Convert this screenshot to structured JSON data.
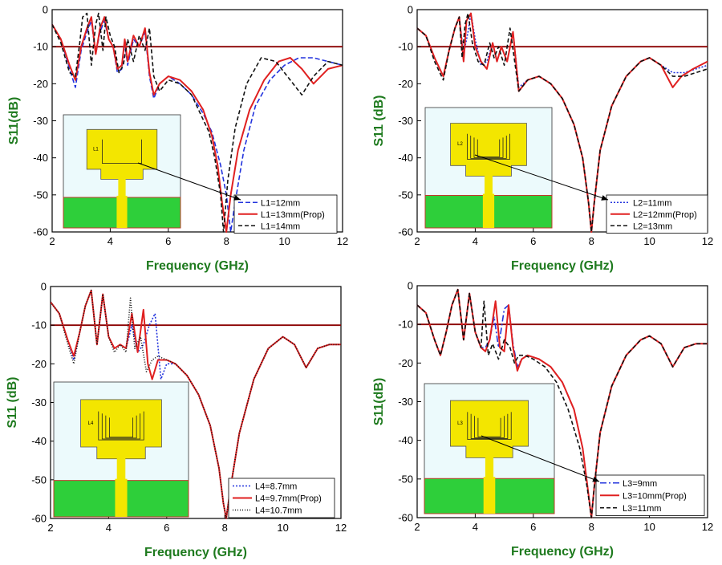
{
  "chart_data": [
    {
      "type": "line",
      "xlabel": "Frequency (GHz)",
      "ylabel": "S11(dB)",
      "xlim": [
        2,
        12
      ],
      "ylim": [
        -60,
        0
      ],
      "xticks": [
        2,
        4,
        6,
        8,
        10,
        12
      ],
      "yticks": [
        0,
        -10,
        -20,
        -30,
        -40,
        -50,
        -60
      ],
      "reference_line": {
        "y": -10,
        "color": "#8b0000"
      },
      "inset_slot_label": "L1",
      "series": [
        {
          "name": "L1=12mm",
          "color": "#2233dd",
          "dash": "6,3",
          "x": [
            2,
            2.3,
            2.6,
            2.8,
            3,
            3.2,
            3.35,
            3.5,
            3.65,
            3.8,
            3.95,
            4.1,
            4.25,
            4.4,
            4.5,
            4.6,
            4.8,
            5,
            5.2,
            5.35,
            5.5,
            5.7,
            6,
            6.4,
            6.8,
            7.2,
            7.5,
            7.8,
            8,
            8.15,
            8.3,
            8.6,
            9,
            9.5,
            10,
            10.5,
            11,
            11.5,
            12
          ],
          "y": [
            -4,
            -8,
            -16,
            -21,
            -11,
            -6,
            -3,
            -12,
            -6,
            -3,
            -8,
            -10,
            -17,
            -16,
            -9,
            -15,
            -8,
            -10,
            -6,
            -18,
            -24,
            -20,
            -18,
            -20,
            -23,
            -28,
            -33,
            -42,
            -50,
            -60,
            -52,
            -38,
            -26,
            -19,
            -15,
            -13,
            -13,
            -14,
            -15
          ]
        },
        {
          "name": "L1=13mm(Prop)",
          "color": "#e02020",
          "dash": "",
          "x": [
            2,
            2.3,
            2.6,
            2.8,
            3,
            3.2,
            3.35,
            3.5,
            3.65,
            3.8,
            3.95,
            4.1,
            4.25,
            4.4,
            4.5,
            4.6,
            4.8,
            5,
            5.2,
            5.35,
            5.5,
            5.7,
            6,
            6.4,
            6.8,
            7.2,
            7.5,
            7.7,
            7.85,
            8,
            8.15,
            8.4,
            8.8,
            9.3,
            9.8,
            10.2,
            10.6,
            11,
            11.5,
            12
          ],
          "y": [
            -4,
            -8,
            -15,
            -19,
            -10,
            -5,
            -2,
            -12,
            -5,
            -2,
            -8,
            -10,
            -16,
            -15,
            -8,
            -14,
            -7,
            -10,
            -5,
            -17,
            -23,
            -20,
            -18,
            -19,
            -22,
            -27,
            -34,
            -42,
            -52,
            -60,
            -50,
            -38,
            -27,
            -19,
            -14,
            -13,
            -16,
            -20,
            -16,
            -15
          ]
        },
        {
          "name": "L1=14mm",
          "color": "#111111",
          "dash": "5,3",
          "x": [
            2,
            2.3,
            2.6,
            2.8,
            2.95,
            3.05,
            3.2,
            3.35,
            3.5,
            3.6,
            3.75,
            3.85,
            4,
            4.15,
            4.3,
            4.45,
            4.6,
            4.8,
            5,
            5.2,
            5.35,
            5.5,
            5.7,
            6,
            6.4,
            6.8,
            7.1,
            7.4,
            7.6,
            7.8,
            7.9,
            8.05,
            8.3,
            8.7,
            9.2,
            9.7,
            10.2,
            10.6,
            11,
            11.5,
            12
          ],
          "y": [
            -4,
            -9,
            -17,
            -18,
            -9,
            -2,
            -1,
            -15,
            -4,
            -1,
            -11,
            -2,
            -7,
            -10,
            -17,
            -15,
            -8,
            -14,
            -7,
            -11,
            -5,
            -18,
            -22,
            -19,
            -20,
            -23,
            -28,
            -33,
            -40,
            -50,
            -60,
            -46,
            -32,
            -20,
            -13,
            -14,
            -19,
            -23,
            -18,
            -14,
            -15
          ]
        }
      ],
      "legend": {
        "position": "bottom-right"
      }
    },
    {
      "type": "line",
      "xlabel": "Frequency (GHz)",
      "ylabel": "S11 (dB)",
      "xlim": [
        2,
        12
      ],
      "ylim": [
        -60,
        0
      ],
      "xticks": [
        2,
        4,
        6,
        8,
        10,
        12
      ],
      "yticks": [
        0,
        -10,
        -20,
        -30,
        -40,
        -50,
        -60
      ],
      "reference_line": {
        "y": -10,
        "color": "#8b0000"
      },
      "inset_slot_label": "L2",
      "series": [
        {
          "name": "L2=11mm",
          "color": "#2233dd",
          "dash": "2,2",
          "x": [
            2,
            2.3,
            2.6,
            2.9,
            3.1,
            3.3,
            3.45,
            3.6,
            3.75,
            3.85,
            4,
            4.2,
            4.4,
            4.6,
            4.75,
            4.9,
            5.1,
            5.3,
            5.5,
            5.8,
            6.2,
            6.6,
            7,
            7.4,
            7.7,
            7.9,
            8,
            8.1,
            8.3,
            8.7,
            9.2,
            9.7,
            10,
            10.4,
            10.8,
            11.2,
            11.6,
            12
          ],
          "y": [
            -5,
            -7,
            -13,
            -18,
            -11,
            -5,
            -2,
            -12,
            -6,
            -1,
            -8,
            -15,
            -14,
            -9,
            -14,
            -10,
            -14,
            -6,
            -21,
            -19,
            -18,
            -20,
            -24,
            -31,
            -40,
            -52,
            -60,
            -52,
            -38,
            -26,
            -18,
            -14,
            -13,
            -15,
            -17,
            -17,
            -16,
            -15
          ]
        },
        {
          "name": "L2=12mm(Prop)",
          "color": "#e02020",
          "dash": "",
          "x": [
            2,
            2.3,
            2.6,
            2.9,
            3.1,
            3.3,
            3.45,
            3.6,
            3.7,
            3.85,
            4,
            4.2,
            4.4,
            4.6,
            4.75,
            4.9,
            5.1,
            5.3,
            5.5,
            5.8,
            6.2,
            6.6,
            7,
            7.4,
            7.7,
            7.9,
            8,
            8.1,
            8.3,
            8.7,
            9.2,
            9.7,
            10,
            10.4,
            10.6,
            10.8,
            11.1,
            11.5,
            12
          ],
          "y": [
            -5,
            -7,
            -13,
            -18,
            -11,
            -5,
            -2,
            -14,
            -3,
            -1,
            -10,
            -14,
            -16,
            -9,
            -14,
            -10,
            -14,
            -6,
            -22,
            -19,
            -18,
            -20,
            -24,
            -31,
            -40,
            -52,
            -60,
            -52,
            -38,
            -26,
            -18,
            -14,
            -13,
            -15,
            -18,
            -21,
            -18,
            -16,
            -14
          ]
        },
        {
          "name": "L2=13mm",
          "color": "#111111",
          "dash": "5,3",
          "x": [
            2,
            2.3,
            2.6,
            2.9,
            3.1,
            3.3,
            3.45,
            3.55,
            3.65,
            3.75,
            3.9,
            4.1,
            4.3,
            4.5,
            4.65,
            4.8,
            5,
            5.2,
            5.5,
            5.8,
            6.2,
            6.6,
            7,
            7.4,
            7.7,
            7.9,
            8,
            8.1,
            8.3,
            8.7,
            9.2,
            9.7,
            10,
            10.4,
            10.8,
            11.2,
            11.6,
            12
          ],
          "y": [
            -5,
            -7,
            -14,
            -19,
            -11,
            -5,
            -2,
            -13,
            -4,
            -1,
            -9,
            -14,
            -15,
            -9,
            -13,
            -10,
            -15,
            -5,
            -22,
            -19,
            -18,
            -20,
            -24,
            -31,
            -40,
            -52,
            -60,
            -52,
            -38,
            -26,
            -18,
            -14,
            -13,
            -15,
            -18,
            -18,
            -17,
            -16
          ]
        }
      ],
      "legend": {
        "position": "bottom-right"
      }
    },
    {
      "type": "line",
      "xlabel": "Frequency (GHz)",
      "ylabel": "S11 (dB)",
      "xlim": [
        2,
        12
      ],
      "ylim": [
        -60,
        0
      ],
      "xticks": [
        2,
        4,
        6,
        8,
        10,
        12
      ],
      "yticks": [
        0,
        -10,
        -20,
        -30,
        -40,
        -50,
        -60
      ],
      "reference_line": {
        "y": -10,
        "color": "#8b0000"
      },
      "inset_slot_label": "L4",
      "series": [
        {
          "name": "L4=8.7mm",
          "color": "#2233dd",
          "dash": "2,2",
          "x": [
            2,
            2.3,
            2.6,
            2.8,
            3,
            3.2,
            3.4,
            3.6,
            3.8,
            4,
            4.2,
            4.4,
            4.6,
            4.8,
            5,
            5.2,
            5.4,
            5.6,
            5.8,
            6,
            6.3,
            6.7,
            7.1,
            7.5,
            7.8,
            7.95,
            8.05,
            8.2,
            8.5,
            9,
            9.5,
            10,
            10.4,
            10.8,
            11.2,
            11.6,
            12
          ],
          "y": [
            -4,
            -7,
            -14,
            -19,
            -12,
            -5,
            -1,
            -15,
            -2,
            -13,
            -16,
            -15,
            -16,
            -10,
            -17,
            -15,
            -10,
            -7,
            -24,
            -20,
            -20,
            -23,
            -28,
            -36,
            -47,
            -56,
            -60,
            -52,
            -38,
            -24,
            -16,
            -13,
            -15,
            -21,
            -16,
            -15,
            -15
          ]
        },
        {
          "name": "L4=9.7mm(Prop)",
          "color": "#e02020",
          "dash": "",
          "x": [
            2,
            2.3,
            2.6,
            2.8,
            3,
            3.2,
            3.4,
            3.6,
            3.8,
            4,
            4.2,
            4.4,
            4.6,
            4.8,
            5,
            5.2,
            5.35,
            5.5,
            5.7,
            6,
            6.3,
            6.7,
            7.1,
            7.5,
            7.8,
            7.95,
            8.05,
            8.2,
            8.5,
            9,
            9.5,
            10,
            10.4,
            10.8,
            11.2,
            11.6,
            12
          ],
          "y": [
            -4,
            -7,
            -14,
            -18,
            -12,
            -5,
            -1,
            -15,
            -2,
            -13,
            -16,
            -15,
            -16,
            -7,
            -17,
            -6,
            -20,
            -24,
            -19,
            -19,
            -20,
            -23,
            -28,
            -36,
            -47,
            -56,
            -60,
            -52,
            -38,
            -24,
            -16,
            -13,
            -15,
            -21,
            -16,
            -15,
            -15
          ]
        },
        {
          "name": "L4=10.7mm",
          "color": "#111111",
          "dash": "1,2",
          "x": [
            2,
            2.3,
            2.6,
            2.8,
            3,
            3.2,
            3.4,
            3.6,
            3.8,
            4,
            4.2,
            4.4,
            4.6,
            4.75,
            4.9,
            5.1,
            5.3,
            5.5,
            5.7,
            6,
            6.3,
            6.7,
            7.1,
            7.5,
            7.8,
            7.95,
            8.05,
            8.2,
            8.5,
            9,
            9.5,
            10,
            10.4,
            10.8,
            11.2,
            11.6,
            12
          ],
          "y": [
            -4,
            -7,
            -15,
            -20,
            -12,
            -5,
            -1,
            -15,
            -2,
            -13,
            -17,
            -15,
            -17,
            -3,
            -16,
            -13,
            -22,
            -19,
            -18,
            -19,
            -20,
            -23,
            -28,
            -36,
            -47,
            -56,
            -60,
            -52,
            -38,
            -24,
            -16,
            -13,
            -15,
            -21,
            -16,
            -15,
            -15
          ]
        }
      ],
      "legend": {
        "position": "bottom-right"
      }
    },
    {
      "type": "line",
      "xlabel": "Frequency (GHz)",
      "ylabel": "S11(dB)",
      "xlim": [
        2,
        12
      ],
      "ylim": [
        -60,
        0
      ],
      "xticks": [
        2,
        4,
        6,
        8,
        10,
        12
      ],
      "yticks": [
        0,
        -10,
        -20,
        -30,
        -40,
        -50,
        -60
      ],
      "reference_line": {
        "y": -10,
        "color": "#8b0000"
      },
      "inset_slot_label": "L3",
      "series": [
        {
          "name": "L3=9mm",
          "color": "#2233dd",
          "dash": "8,3,2,3",
          "x": [
            2,
            2.3,
            2.6,
            2.8,
            3,
            3.2,
            3.4,
            3.6,
            3.8,
            4,
            4.2,
            4.35,
            4.5,
            4.65,
            4.8,
            5,
            5.15,
            5.3,
            5.45,
            5.6,
            5.8,
            6.2,
            6.6,
            7,
            7.4,
            7.7,
            7.9,
            8,
            8.1,
            8.3,
            8.7,
            9.2,
            9.7,
            10,
            10.4,
            10.8,
            11.2,
            11.6,
            12
          ],
          "y": [
            -5,
            -7,
            -14,
            -18,
            -12,
            -5,
            -1,
            -14,
            -2,
            -12,
            -16,
            -16,
            -14,
            -8,
            -16,
            -6,
            -5,
            -15,
            -21,
            -19,
            -18,
            -19,
            -21,
            -25,
            -32,
            -42,
            -54,
            -60,
            -52,
            -38,
            -26,
            -18,
            -14,
            -13,
            -15,
            -21,
            -16,
            -15,
            -15
          ]
        },
        {
          "name": "L3=10mm(Prop)",
          "color": "#e02020",
          "dash": "",
          "x": [
            2,
            2.3,
            2.6,
            2.8,
            3,
            3.2,
            3.4,
            3.6,
            3.8,
            4,
            4.2,
            4.35,
            4.5,
            4.7,
            4.85,
            5,
            5.15,
            5.3,
            5.45,
            5.6,
            5.8,
            6.2,
            6.6,
            7,
            7.4,
            7.7,
            7.9,
            8,
            8.1,
            8.3,
            8.7,
            9.2,
            9.7,
            10,
            10.4,
            10.8,
            11.2,
            11.6,
            12
          ],
          "y": [
            -5,
            -7,
            -14,
            -18,
            -12,
            -5,
            -1,
            -14,
            -2,
            -12,
            -16,
            -17,
            -14,
            -4,
            -16,
            -17,
            -5,
            -16,
            -22,
            -19,
            -18,
            -19,
            -21,
            -25,
            -32,
            -42,
            -54,
            -60,
            -52,
            -38,
            -26,
            -18,
            -14,
            -13,
            -15,
            -21,
            -16,
            -15,
            -15
          ]
        },
        {
          "name": "L3=11mm",
          "color": "#111111",
          "dash": "5,3",
          "x": [
            2,
            2.3,
            2.6,
            2.8,
            3,
            3.2,
            3.4,
            3.6,
            3.8,
            4,
            4.2,
            4.3,
            4.45,
            4.6,
            4.8,
            5,
            5.2,
            5.35,
            5.5,
            5.7,
            6,
            6.4,
            6.8,
            7.2,
            7.6,
            7.85,
            8,
            8.1,
            8.3,
            8.7,
            9.2,
            9.7,
            10,
            10.4,
            10.8,
            11.2,
            11.6,
            12
          ],
          "y": [
            -5,
            -7,
            -14,
            -18,
            -12,
            -5,
            -1,
            -14,
            -2,
            -12,
            -16,
            -4,
            -18,
            -15,
            -19,
            -14,
            -16,
            -20,
            -18,
            -18,
            -19,
            -21,
            -25,
            -32,
            -42,
            -52,
            -60,
            -52,
            -38,
            -26,
            -18,
            -14,
            -13,
            -15,
            -21,
            -16,
            -15,
            -15
          ]
        }
      ],
      "legend": {
        "position": "bottom-right"
      }
    }
  ]
}
